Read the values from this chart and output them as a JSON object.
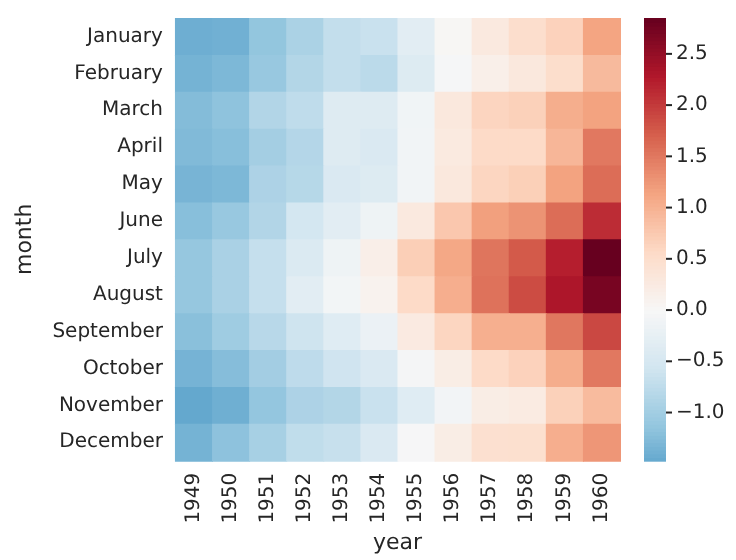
{
  "chart_data": {
    "type": "heatmap",
    "xlabel": "year",
    "ylabel": "month",
    "categories": [
      "1949",
      "1950",
      "1951",
      "1952",
      "1953",
      "1954",
      "1955",
      "1956",
      "1957",
      "1958",
      "1959",
      "1960"
    ],
    "y_categories": [
      "January",
      "February",
      "March",
      "April",
      "May",
      "June",
      "July",
      "August",
      "September",
      "October",
      "November",
      "December"
    ],
    "cells": [
      [
        -1.4,
        -1.38,
        -1.13,
        -0.91,
        -0.7,
        -0.64,
        -0.32,
        0.03,
        0.29,
        0.5,
        0.66,
        1.14
      ],
      [
        -1.35,
        -1.29,
        -1.09,
        -0.84,
        -0.7,
        -0.77,
        -0.39,
        -0.03,
        0.17,
        0.31,
        0.51,
        0.92
      ],
      [
        -1.24,
        -1.16,
        -0.85,
        -0.73,
        -0.37,
        -0.38,
        -0.11,
        0.31,
        0.63,
        0.68,
        1.05,
        1.16
      ],
      [
        -1.26,
        -1.21,
        -0.98,
        -0.83,
        -0.38,
        -0.44,
        -0.09,
        0.27,
        0.56,
        0.56,
        0.96,
        1.51
      ],
      [
        -1.33,
        -1.29,
        -0.9,
        -0.81,
        -0.43,
        -0.39,
        -0.09,
        0.31,
        0.62,
        0.69,
        1.16,
        1.6
      ],
      [
        -1.21,
        -1.09,
        -0.85,
        -0.52,
        -0.31,
        -0.14,
        0.29,
        0.78,
        1.18,
        1.29,
        1.6,
        2.12
      ],
      [
        -1.1,
        -0.92,
        -0.68,
        -0.42,
        -0.14,
        0.18,
        0.7,
        1.11,
        1.54,
        1.76,
        2.23,
        2.85
      ],
      [
        -1.1,
        -0.92,
        -0.68,
        -0.32,
        -0.07,
        0.11,
        0.56,
        1.04,
        1.56,
        1.87,
        2.32,
        2.72
      ],
      [
        -1.2,
        -1.02,
        -0.8,
        -0.59,
        -0.36,
        -0.18,
        0.26,
        0.62,
        1.03,
        1.03,
        1.52,
        1.9
      ],
      [
        -1.34,
        -1.23,
        -0.99,
        -0.74,
        -0.58,
        -0.43,
        -0.05,
        0.21,
        0.56,
        0.66,
        1.06,
        1.51
      ],
      [
        -1.47,
        -1.39,
        -1.12,
        -0.9,
        -0.84,
        -0.64,
        -0.36,
        -0.08,
        0.21,
        0.25,
        0.68,
        0.91
      ],
      [
        -1.35,
        -1.17,
        -0.95,
        -0.72,
        -0.66,
        -0.43,
        -0.02,
        0.21,
        0.46,
        0.47,
        1.04,
        1.26
      ]
    ],
    "clim": [
      -1.47,
      2.85
    ],
    "cticks": [
      {
        "value": -1,
        "label": "−1.0"
      },
      {
        "value": -0.5,
        "label": "−0.5"
      },
      {
        "value": 0,
        "label": "0.0"
      },
      {
        "value": 0.5,
        "label": "0.5"
      },
      {
        "value": 1,
        "label": "1.0"
      },
      {
        "value": 1.5,
        "label": "1.5"
      },
      {
        "value": 2,
        "label": "2.0"
      },
      {
        "value": 2.5,
        "label": "2.5"
      }
    ]
  }
}
